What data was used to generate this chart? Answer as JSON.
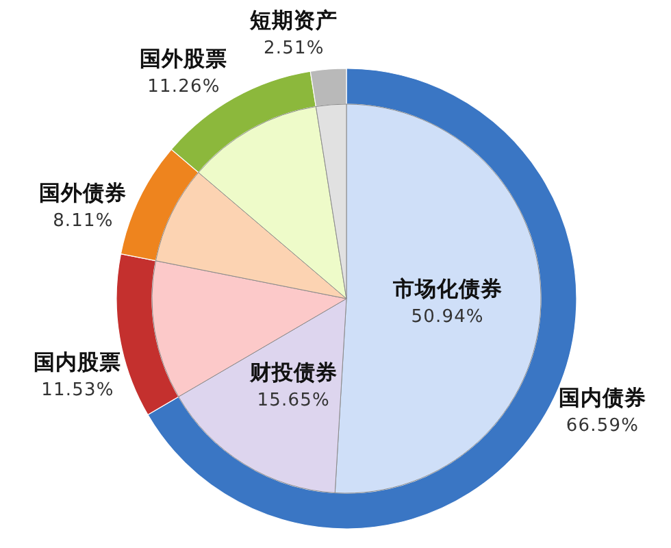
{
  "chart_data": [
    {
      "type": "donut",
      "categories": [
        "国内债券",
        "国内股票",
        "国外债券",
        "国外股票",
        "短期资产"
      ],
      "values": [
        66.59,
        11.53,
        8.11,
        11.26,
        2.51
      ],
      "colors": [
        "#3a76c4",
        "#c4302e",
        "#ee841e",
        "#8cb83c",
        "#b9b9b9"
      ],
      "value_labels": [
        "66.59%",
        "11.53%",
        "8.11%",
        "11.26%",
        "2.51%"
      ]
    },
    {
      "type": "pie",
      "categories": [
        "市场化债券",
        "财投债券",
        null,
        null,
        null,
        null
      ],
      "values": [
        50.94,
        15.65,
        11.53,
        8.11,
        11.26,
        2.51
      ],
      "colors": [
        "#cfdff8",
        "#ddd5ee",
        "#fcc9c9",
        "#fcd3b2",
        "#eefbc9",
        "#e1e1e1"
      ],
      "value_labels": [
        "50.94%",
        "15.65%",
        null,
        null,
        null,
        null
      ]
    }
  ]
}
